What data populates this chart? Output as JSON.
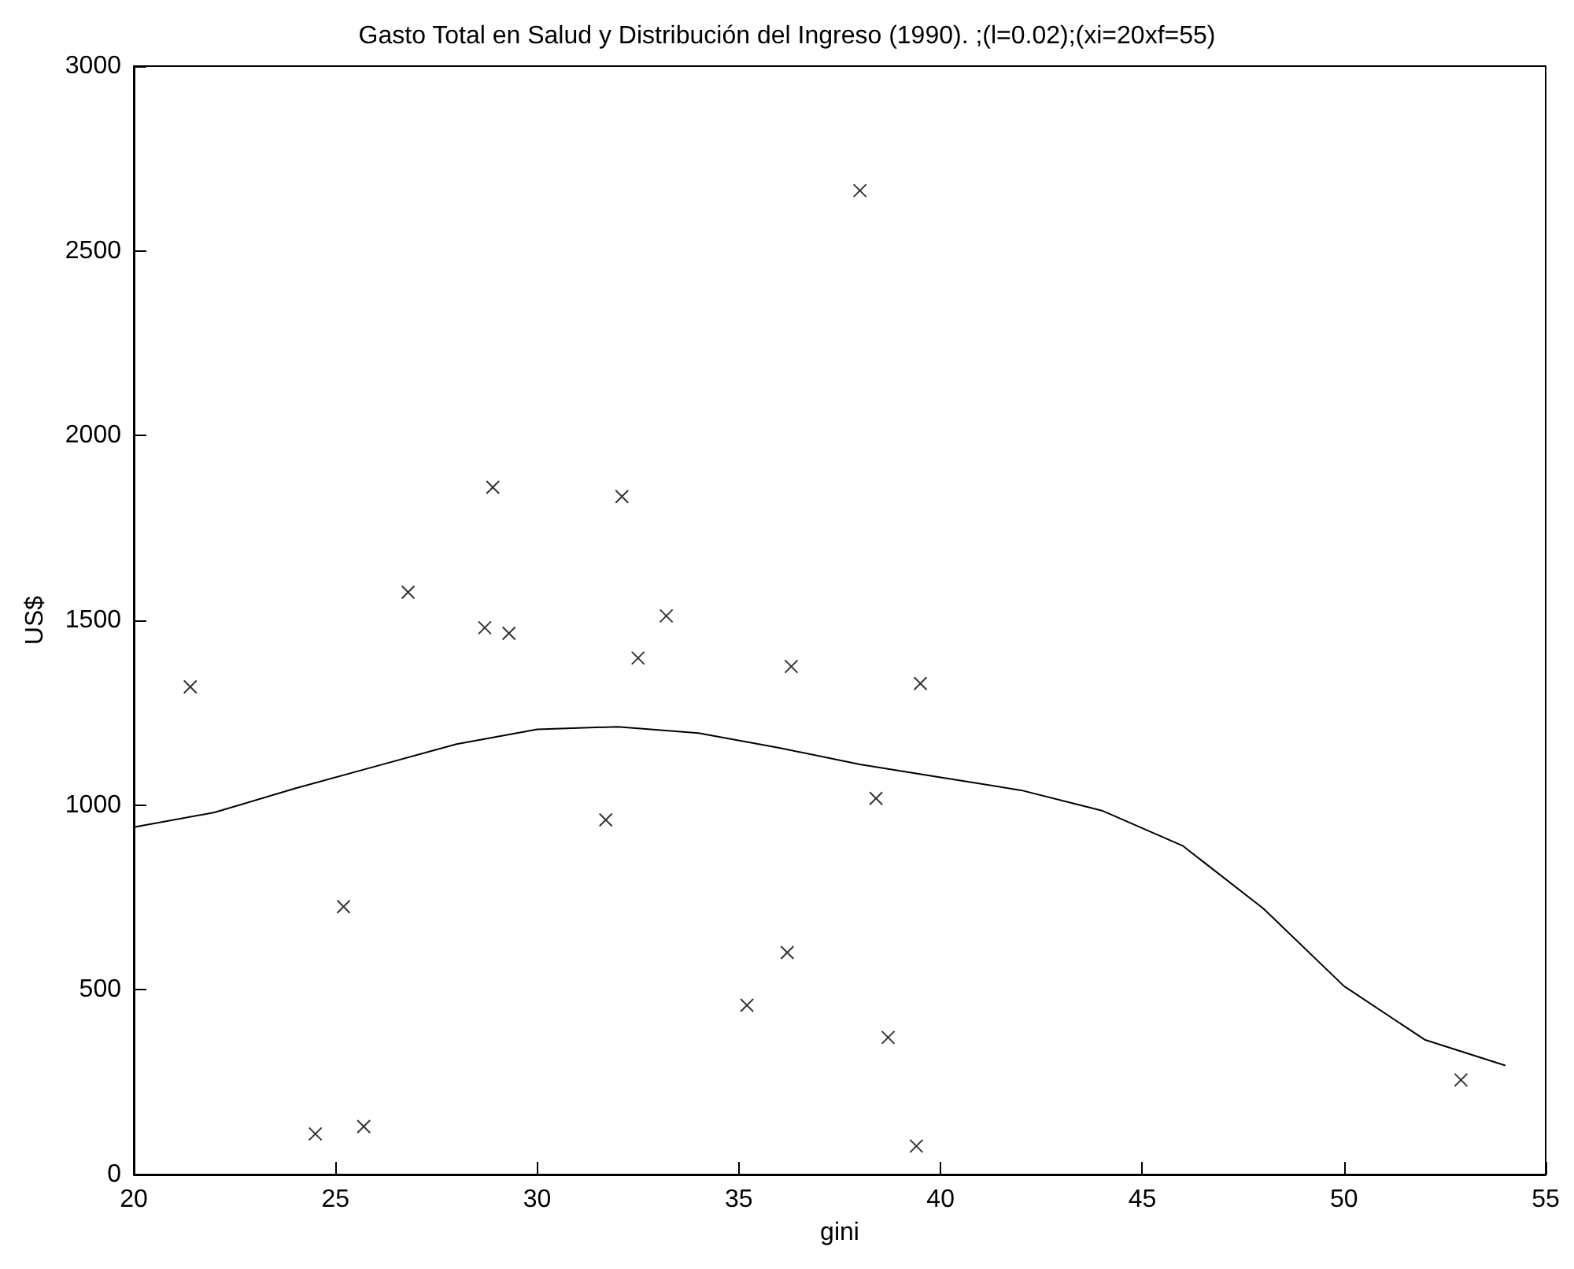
{
  "chart_data": {
    "type": "scatter",
    "title": "Gasto Total en Salud y Distribución del Ingreso (1990). ;(l=0.02);(xi=20xf=55)",
    "xlabel": "gini",
    "ylabel": "US$",
    "xlim": [
      20,
      55
    ],
    "xticks": [
      20,
      25,
      30,
      35,
      40,
      45,
      50,
      55
    ],
    "ylim": [
      0,
      3000
    ],
    "yticks": [
      0,
      500,
      1000,
      1500,
      2000,
      2500,
      3000
    ],
    "grid": false,
    "series": [
      {
        "marker": "cross",
        "color": "#000000",
        "x": [
          21.4,
          24.5,
          25.2,
          25.7,
          26.8,
          28.7,
          28.9,
          29.3,
          31.7,
          32.1,
          32.5,
          33.2,
          35.2,
          36.2,
          36.3,
          38.0,
          38.4,
          38.7,
          39.4,
          39.5,
          52.9
        ],
        "values": [
          1320,
          110,
          725,
          130,
          1576,
          1480,
          1860,
          1465,
          960,
          1835,
          1398,
          1512,
          458,
          601,
          1375,
          2663,
          1018,
          371,
          77,
          1329,
          256
        ]
      },
      {
        "type": "line",
        "marker": "none",
        "line_style": "solid",
        "color": "#000000",
        "x": [
          20,
          22,
          24,
          26,
          28,
          30,
          32,
          34,
          36,
          38,
          40,
          42,
          44,
          46,
          48,
          50,
          52,
          54
        ],
        "values": [
          940,
          980,
          1045,
          1105,
          1165,
          1205,
          1212,
          1195,
          1155,
          1110,
          1075,
          1040,
          985,
          890,
          720,
          510,
          365,
          295
        ]
      }
    ]
  }
}
